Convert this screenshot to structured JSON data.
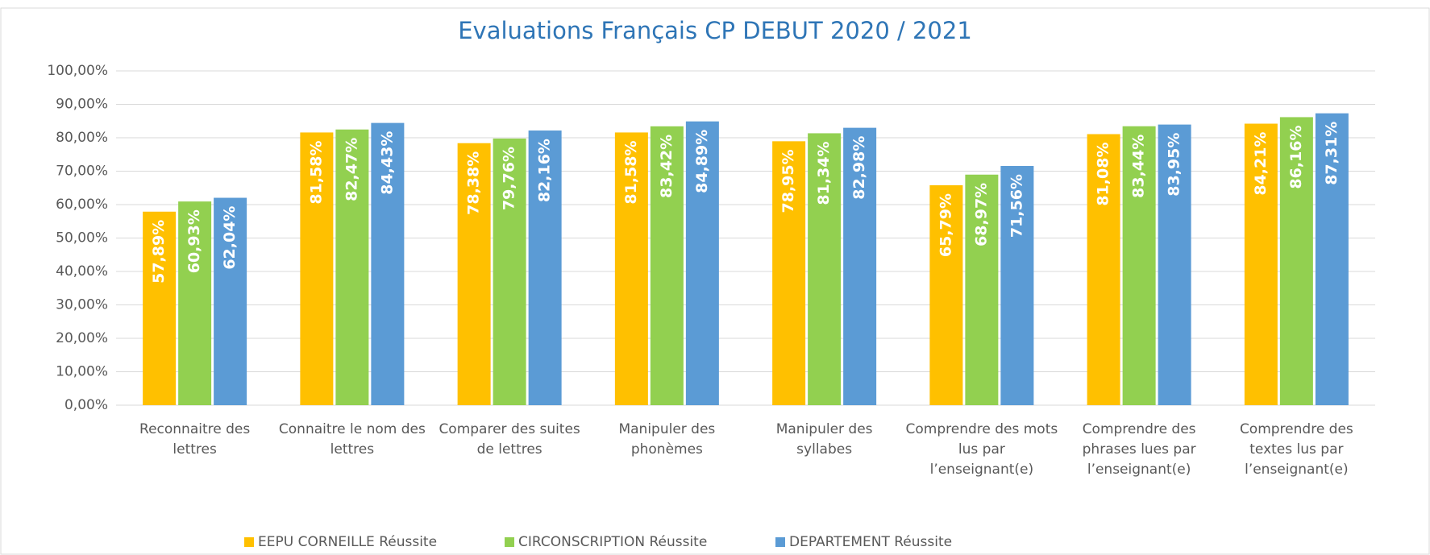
{
  "chart_data": {
    "type": "bar",
    "title": "Evaluations Français CP DEBUT 2020 / 2021",
    "categories": [
      "Reconnaitre des lettres",
      "Connaitre le nom des lettres",
      "Comparer des suites de lettres",
      "Manipuler des phonèmes",
      "Manipuler des syllabes",
      "Comprendre des mots lus par l’enseignant(e)",
      "Comprendre des phrases lues par l’enseignant(e)",
      "Comprendre des textes lus par l’enseignant(e)"
    ],
    "series": [
      {
        "name": "EEPU CORNEILLE Réussite",
        "color": "#ffc000",
        "values": [
          57.89,
          81.58,
          78.38,
          81.58,
          78.95,
          65.79,
          81.08,
          84.21
        ],
        "value_labels": [
          "57,89%",
          "81,58%",
          "78,38%",
          "81,58%",
          "78,95%",
          "65,79%",
          "81,08%",
          "84,21%"
        ]
      },
      {
        "name": "CIRCONSCRIPTION Réussite",
        "color": "#92d050",
        "values": [
          60.93,
          82.47,
          79.76,
          83.42,
          81.34,
          68.97,
          83.44,
          86.16
        ],
        "value_labels": [
          "60,93%",
          "82,47%",
          "79,76%",
          "83,42%",
          "81,34%",
          "68,97%",
          "83,44%",
          "86,16%"
        ]
      },
      {
        "name": "DEPARTEMENT Réussite",
        "color": "#5b9bd5",
        "values": [
          62.04,
          84.43,
          82.16,
          84.89,
          82.98,
          71.56,
          83.95,
          87.31
        ],
        "value_labels": [
          "62,04%",
          "84,43%",
          "82,16%",
          "84,89%",
          "82,98%",
          "71,56%",
          "83,95%",
          "87,31%"
        ]
      }
    ],
    "ylim": [
      0,
      100
    ],
    "yticks": [
      {
        "value": 0,
        "label": "0,00%"
      },
      {
        "value": 10,
        "label": "10,00%"
      },
      {
        "value": 20,
        "label": "20,00%"
      },
      {
        "value": 30,
        "label": "30,00%"
      },
      {
        "value": 40,
        "label": "40,00%"
      },
      {
        "value": 50,
        "label": "50,00%"
      },
      {
        "value": 60,
        "label": "60,00%"
      },
      {
        "value": 70,
        "label": "70,00%"
      },
      {
        "value": 80,
        "label": "80,00%"
      },
      {
        "value": 90,
        "label": "90,00%"
      },
      {
        "value": 100,
        "label": "100,00%"
      }
    ],
    "grid": true,
    "legend": "bottom"
  }
}
